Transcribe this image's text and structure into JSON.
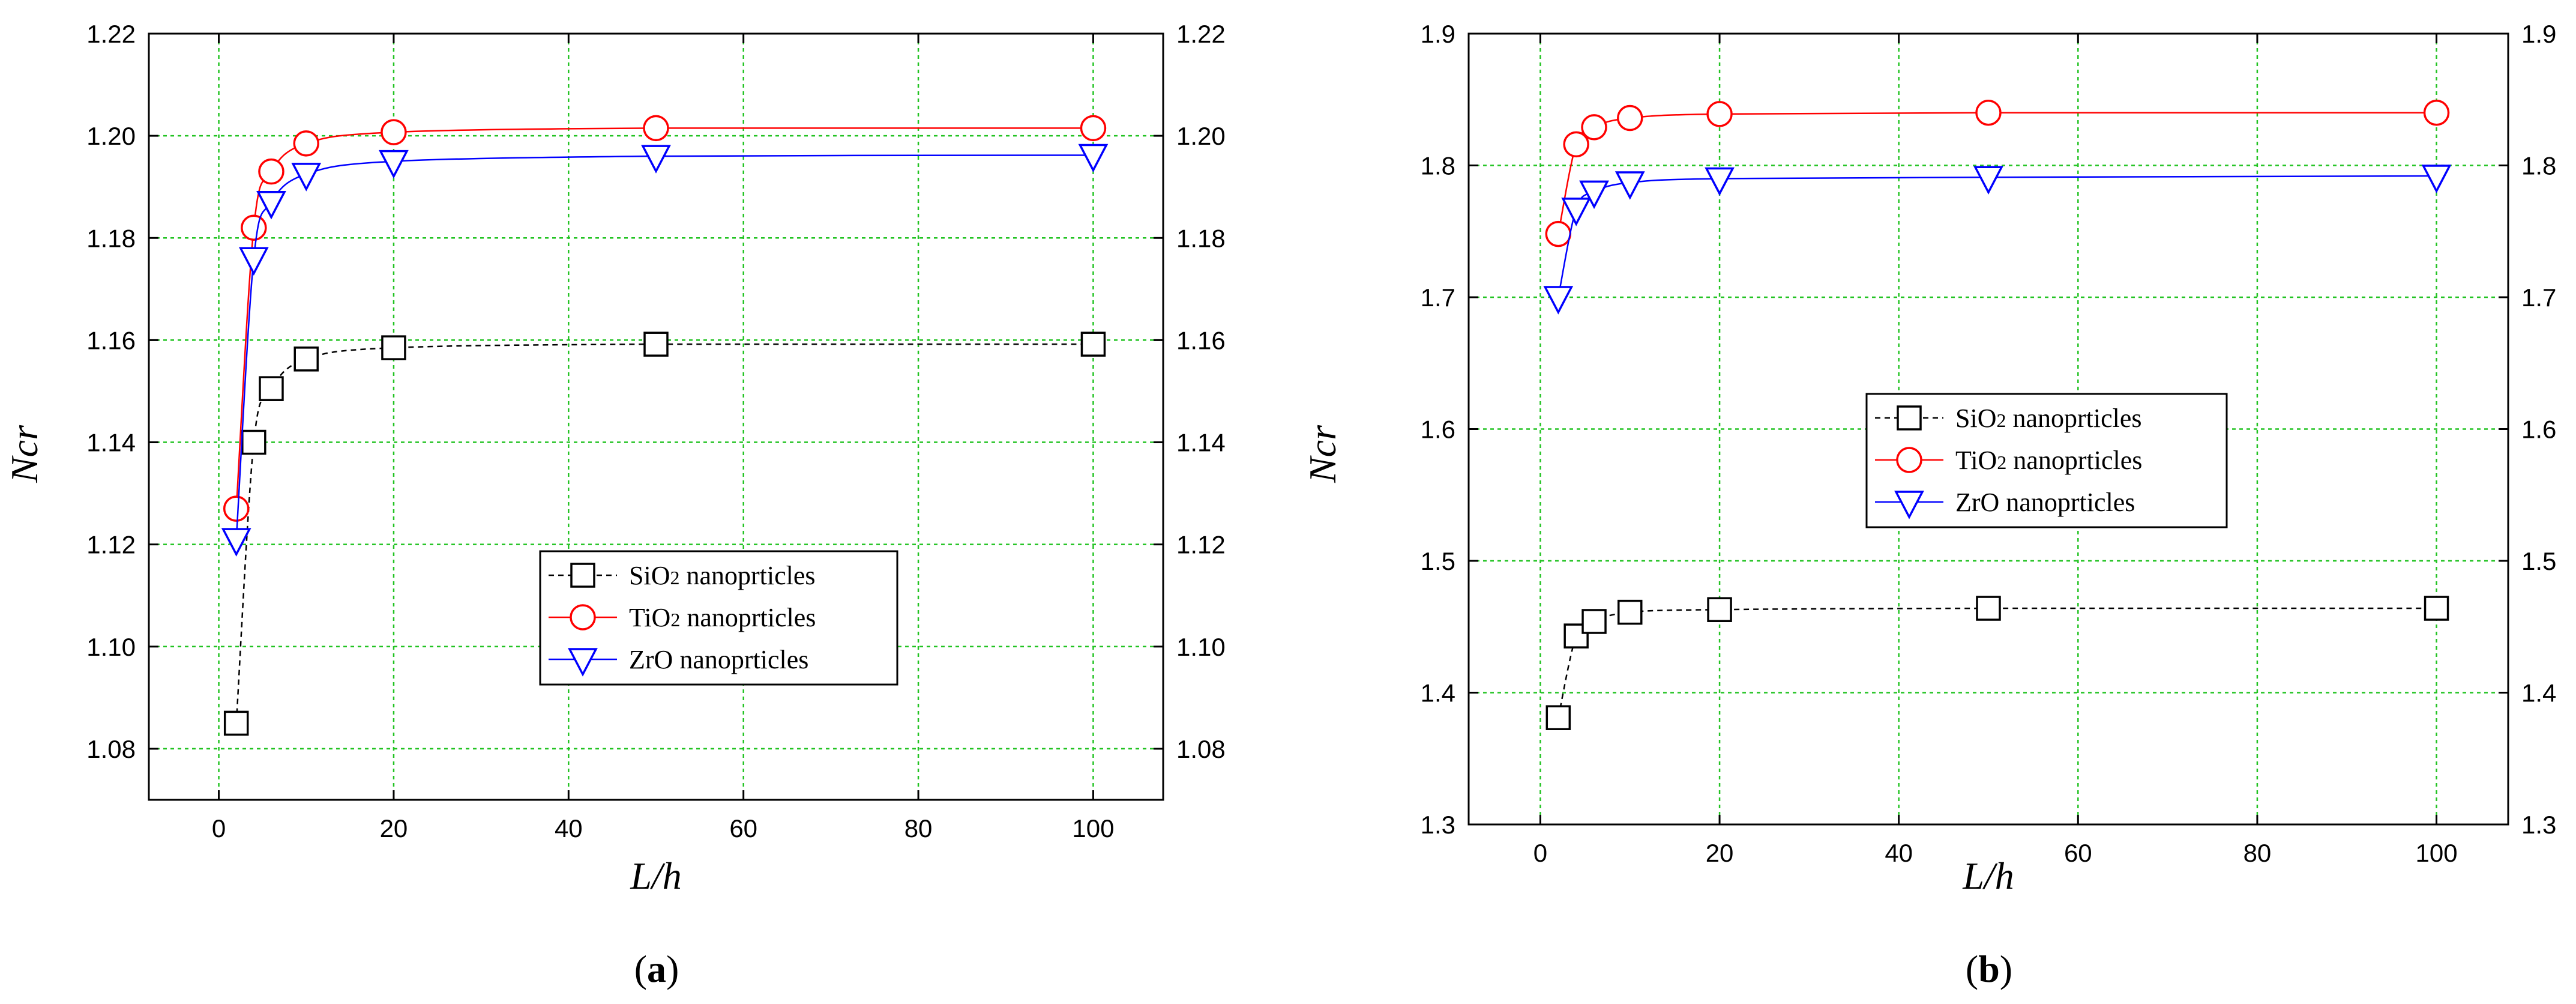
{
  "chart_data": [
    {
      "type": "line",
      "panel_label": "a",
      "xlabel": "L/h",
      "ylabel": "Ncr",
      "xlim": [
        -8,
        108
      ],
      "ylim": [
        1.07,
        1.22
      ],
      "xticks": [
        0,
        20,
        40,
        60,
        80,
        100
      ],
      "yticks": [
        1.08,
        1.1,
        1.12,
        1.14,
        1.16,
        1.18,
        1.2,
        1.22
      ],
      "ytick_labels": [
        "1.08",
        "1.10",
        "1.12",
        "1.14",
        "1.16",
        "1.18",
        "1.20",
        "1.22"
      ],
      "grid": true,
      "legend_position": "lower-center",
      "series": [
        {
          "name": "SiO2 nanoprticles",
          "name_main": "SiO",
          "name_sub": "2",
          "name_rest": " nanoprticles",
          "marker": "square",
          "color": "#000000",
          "dash": "dashed",
          "x": [
            2,
            4,
            6,
            10,
            20,
            50,
            100
          ],
          "values": [
            1.085,
            1.14,
            1.1505,
            1.1563,
            1.1585,
            1.1592,
            1.1592
          ]
        },
        {
          "name": "TiO2 nanoprticles",
          "name_main": "TiO",
          "name_sub": "2",
          "name_rest": " nanoprticles",
          "marker": "circle",
          "color": "#ff0000",
          "dash": "solid",
          "x": [
            2,
            4,
            6,
            10,
            20,
            50,
            100
          ],
          "values": [
            1.127,
            1.182,
            1.193,
            1.1985,
            1.2007,
            1.2015,
            1.2015
          ]
        },
        {
          "name": "ZrO nanoprticles",
          "name_main": "ZrO",
          "name_sub": "",
          "name_rest": " nanoprticles",
          "marker": "triangle-down",
          "color": "#0000ff",
          "dash": "solid",
          "x": [
            2,
            4,
            6,
            10,
            20,
            50,
            100
          ],
          "values": [
            1.121,
            1.176,
            1.187,
            1.1925,
            1.195,
            1.196,
            1.1962
          ]
        }
      ]
    },
    {
      "type": "line",
      "panel_label": "b",
      "xlabel": "L/h",
      "ylabel": "Ncr",
      "xlim": [
        -8,
        108
      ],
      "ylim": [
        1.3,
        1.9
      ],
      "xticks": [
        0,
        20,
        40,
        60,
        80,
        100
      ],
      "yticks": [
        1.3,
        1.4,
        1.5,
        1.6,
        1.7,
        1.8,
        1.9
      ],
      "ytick_labels": [
        "1.3",
        "1.4",
        "1.5",
        "1.6",
        "1.7",
        "1.8",
        "1.9"
      ],
      "grid": true,
      "legend_position": "center",
      "series": [
        {
          "name": "SiO2 nanoprticles",
          "name_main": "SiO",
          "name_sub": "2",
          "name_rest": " nanoprticles",
          "marker": "square",
          "color": "#000000",
          "dash": "dashed",
          "x": [
            2,
            4,
            6,
            10,
            20,
            50,
            100
          ],
          "values": [
            1.381,
            1.443,
            1.454,
            1.461,
            1.463,
            1.464,
            1.464
          ]
        },
        {
          "name": "TiO2 nanoprticles",
          "name_main": "TiO",
          "name_sub": "2",
          "name_rest": " nanoprticles",
          "marker": "circle",
          "color": "#ff0000",
          "dash": "solid",
          "x": [
            2,
            4,
            6,
            10,
            20,
            50,
            100
          ],
          "values": [
            1.748,
            1.816,
            1.829,
            1.836,
            1.839,
            1.84,
            1.84
          ]
        },
        {
          "name": "ZrO nanoprticles",
          "name_main": "ZrO",
          "name_sub": "",
          "name_rest": " nanoprticles",
          "marker": "triangle-down",
          "color": "#0000ff",
          "dash": "solid",
          "x": [
            2,
            4,
            6,
            10,
            20,
            50,
            100
          ],
          "values": [
            1.7,
            1.767,
            1.78,
            1.787,
            1.79,
            1.791,
            1.792
          ]
        }
      ]
    }
  ]
}
